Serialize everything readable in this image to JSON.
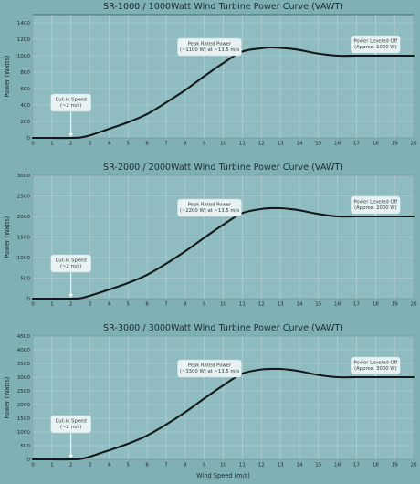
{
  "colors": {
    "background": "#7fb0b4",
    "plot_area": "#8fbcc0",
    "grid": "#b7d3d5",
    "curve": "#14191a",
    "annotation_box": "#e9f2f2"
  },
  "chart_data": [
    {
      "type": "line",
      "title": "SR-1000 / 1000Watt Wind Turbine Power Curve (VAWT)",
      "xlabel": "",
      "ylabel": "Power (Watts)",
      "xlim": [
        0,
        20
      ],
      "ylim": [
        0,
        1500
      ],
      "xticks": [
        0,
        1,
        2,
        3,
        4,
        5,
        6,
        7,
        8,
        9,
        10,
        11,
        12,
        13,
        14,
        15,
        16,
        17,
        18,
        19,
        20
      ],
      "yticks": [
        0,
        200,
        400,
        600,
        800,
        1000,
        1200,
        1400
      ],
      "grid": true,
      "series": [
        {
          "x": [
            0,
            1,
            2,
            2.5,
            3,
            4,
            5,
            6,
            7,
            8,
            9,
            10,
            11,
            12,
            12.5,
            13,
            13.5,
            14,
            15,
            16,
            17,
            18,
            19,
            20
          ],
          "y": [
            0,
            0,
            0,
            5,
            30,
            110,
            190,
            290,
            430,
            580,
            750,
            910,
            1050,
            1090,
            1100,
            1095,
            1085,
            1070,
            1025,
            1000,
            1000,
            1000,
            1000,
            1000
          ]
        }
      ],
      "annotations": [
        {
          "lines": [
            "Cut-in Speed",
            "(~2 m/s)"
          ],
          "x": 2,
          "y": 0,
          "placement": "above",
          "arrow": true
        },
        {
          "lines": [
            "Peak Rated Power",
            "(~1100 W) at ~13.5 m/s"
          ],
          "x": 13.5,
          "y": 1100,
          "placement": "left",
          "arrow": false
        },
        {
          "lines": [
            "Power Leveled Off",
            "(Approx. 1000 W)"
          ],
          "x": 18,
          "y": 1000,
          "placement": "above",
          "arrow": true
        }
      ]
    },
    {
      "type": "line",
      "title": "SR-2000 / 2000Watt Wind Turbine Power Curve (VAWT)",
      "xlabel": "",
      "ylabel": "Power (Watts)",
      "xlim": [
        0,
        20
      ],
      "ylim": [
        0,
        3000
      ],
      "xticks": [
        0,
        1,
        2,
        3,
        4,
        5,
        6,
        7,
        8,
        9,
        10,
        11,
        12,
        13,
        14,
        15,
        16,
        17,
        18,
        19,
        20
      ],
      "yticks": [
        0,
        500,
        1000,
        1500,
        2000,
        2500,
        3000
      ],
      "grid": true,
      "series": [
        {
          "x": [
            0,
            1,
            2,
            2.5,
            3,
            4,
            5,
            6,
            7,
            8,
            9,
            10,
            11,
            12,
            12.5,
            13,
            13.5,
            14,
            15,
            16,
            17,
            18,
            19,
            20
          ],
          "y": [
            0,
            0,
            0,
            10,
            70,
            220,
            380,
            580,
            850,
            1150,
            1480,
            1800,
            2080,
            2180,
            2200,
            2200,
            2180,
            2150,
            2060,
            2000,
            2000,
            2000,
            2000,
            2000
          ]
        }
      ],
      "annotations": [
        {
          "lines": [
            "Cut-in Speed",
            "(~2 m/s)"
          ],
          "x": 2,
          "y": 0,
          "placement": "above",
          "arrow": true
        },
        {
          "lines": [
            "Peak Rated Power",
            "(~2200 W) at ~13.5 m/s"
          ],
          "x": 13.5,
          "y": 2200,
          "placement": "left",
          "arrow": false
        },
        {
          "lines": [
            "Power Leveled Off",
            "(Approx. 2000 W)"
          ],
          "x": 18,
          "y": 2000,
          "placement": "above",
          "arrow": true
        }
      ]
    },
    {
      "type": "line",
      "title": "SR-3000 / 3000Watt Wind Turbine Power Curve (VAWT)",
      "xlabel": "Wind Speed (m/s)",
      "ylabel": "Power (Watts)",
      "xlim": [
        0,
        20
      ],
      "ylim": [
        0,
        4500
      ],
      "xticks": [
        0,
        1,
        2,
        3,
        4,
        5,
        6,
        7,
        8,
        9,
        10,
        11,
        12,
        13,
        14,
        15,
        16,
        17,
        18,
        19,
        20
      ],
      "yticks": [
        0,
        500,
        1000,
        1500,
        2000,
        2500,
        3000,
        3500,
        4000,
        4500
      ],
      "grid": true,
      "series": [
        {
          "x": [
            0,
            1,
            2,
            2.5,
            3,
            4,
            5,
            6,
            7,
            8,
            9,
            10,
            11,
            12,
            12.5,
            13,
            13.5,
            14,
            15,
            16,
            17,
            18,
            19,
            20
          ],
          "y": [
            0,
            0,
            0,
            15,
            100,
            330,
            570,
            870,
            1270,
            1720,
            2220,
            2700,
            3130,
            3280,
            3300,
            3300,
            3270,
            3220,
            3080,
            3000,
            3000,
            3000,
            3000,
            3000
          ]
        }
      ],
      "annotations": [
        {
          "lines": [
            "Cut-in Speed",
            "(~2 m/s)"
          ],
          "x": 2,
          "y": 0,
          "placement": "above",
          "arrow": true
        },
        {
          "lines": [
            "Peak Rated Power",
            "(~3300 W) at ~13.5 m/s"
          ],
          "x": 13.5,
          "y": 3300,
          "placement": "left",
          "arrow": false
        },
        {
          "lines": [
            "Power Leveled Off",
            "(Approx. 3000 W)"
          ],
          "x": 18,
          "y": 3000,
          "placement": "above",
          "arrow": true
        }
      ]
    }
  ]
}
